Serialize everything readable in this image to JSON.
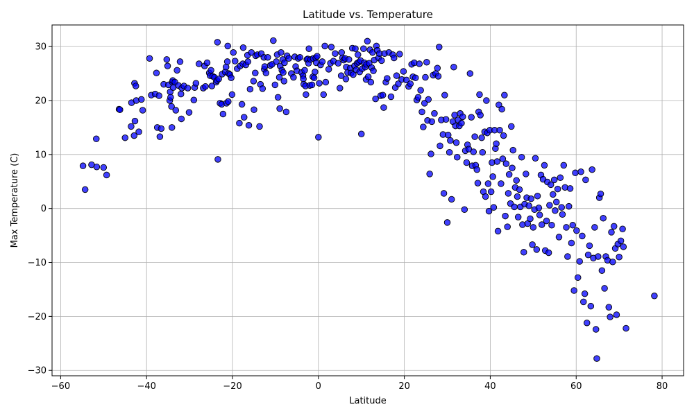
{
  "chart_data": {
    "type": "scatter",
    "title": "Latitude vs. Temperature",
    "xlabel": "Latitude",
    "ylabel": "Max Temperature (C)",
    "xlim": [
      -62,
      85
    ],
    "ylim": [
      -31,
      34
    ],
    "xticks": [
      -60,
      -40,
      -20,
      0,
      20,
      40,
      60,
      80
    ],
    "yticks": [
      -30,
      -20,
      -10,
      0,
      10,
      20,
      30
    ],
    "grid": true,
    "marker_color": "#0000ff",
    "marker_edge_color": "#000000",
    "points": [
      [
        -54.8,
        7.9
      ],
      [
        -54.3,
        3.5
      ],
      [
        -52.8,
        8.1
      ],
      [
        -51.7,
        12.9
      ],
      [
        -51.6,
        7.7
      ],
      [
        -50.0,
        7.6
      ],
      [
        -49.3,
        6.2
      ],
      [
        -46.4,
        18.4
      ],
      [
        -46.2,
        18.3
      ],
      [
        -45.0,
        13.1
      ],
      [
        -43.6,
        15.2
      ],
      [
        -43.5,
        19.6
      ],
      [
        -42.9,
        13.5
      ],
      [
        -42.8,
        23.2
      ],
      [
        -42.7,
        16.2
      ],
      [
        -42.5,
        22.7
      ],
      [
        -42.4,
        20.0
      ],
      [
        -41.8,
        14.2
      ],
      [
        -41.2,
        20.2
      ],
      [
        -40.9,
        18.2
      ],
      [
        -39.3,
        27.8
      ],
      [
        -38.9,
        21.0
      ],
      [
        -38.0,
        21.2
      ],
      [
        -37.7,
        25.1
      ],
      [
        -37.5,
        15.0
      ],
      [
        -37.1,
        20.9
      ],
      [
        -36.9,
        13.3
      ],
      [
        -36.6,
        14.8
      ],
      [
        -36.0,
        23.0
      ],
      [
        -35.3,
        27.6
      ],
      [
        -35.1,
        26.4
      ],
      [
        -34.9,
        22.9
      ],
      [
        -34.6,
        20.0
      ],
      [
        -34.5,
        21.6
      ],
      [
        -34.4,
        20.6
      ],
      [
        -34.2,
        18.9
      ],
      [
        -34.0,
        23.4
      ],
      [
        -34.1,
        15.0
      ],
      [
        -33.9,
        23.7
      ],
      [
        -33.8,
        22.4
      ],
      [
        -33.4,
        23.4
      ],
      [
        -33.2,
        18.2
      ],
      [
        -32.9,
        25.6
      ],
      [
        -32.6,
        22.8
      ],
      [
        -32.2,
        27.2
      ],
      [
        -32.0,
        21.2
      ],
      [
        -31.9,
        16.6
      ],
      [
        -31.8,
        22.3
      ],
      [
        -31.3,
        22.7
      ],
      [
        -30.4,
        22.3
      ],
      [
        -30.1,
        17.8
      ],
      [
        -29.0,
        20.1
      ],
      [
        -28.8,
        22.4
      ],
      [
        -28.5,
        23.2
      ],
      [
        -27.8,
        26.8
      ],
      [
        -26.8,
        22.3
      ],
      [
        -26.5,
        26.4
      ],
      [
        -26.3,
        22.6
      ],
      [
        -25.9,
        27.0
      ],
      [
        -25.4,
        25.1
      ],
      [
        -25.2,
        24.6
      ],
      [
        -25.0,
        25.6
      ],
      [
        -24.8,
        22.7
      ],
      [
        -24.6,
        24.5
      ],
      [
        -24.2,
        24.3
      ],
      [
        -23.8,
        23.4
      ],
      [
        -23.6,
        23.7
      ],
      [
        -23.5,
        30.8
      ],
      [
        -23.4,
        9.1
      ],
      [
        -23.2,
        24.0
      ],
      [
        -22.9,
        19.5
      ],
      [
        -22.5,
        19.3
      ],
      [
        -22.4,
        24.9
      ],
      [
        -22.2,
        17.5
      ],
      [
        -21.7,
        25.3
      ],
      [
        -21.5,
        26.2
      ],
      [
        -21.4,
        19.5
      ],
      [
        -21.1,
        30.1
      ],
      [
        -21.0,
        19.8
      ],
      [
        -20.9,
        25.0
      ],
      [
        -21.2,
        27.2
      ],
      [
        -20.6,
        24.8
      ],
      [
        -20.3,
        24.2
      ],
      [
        -20.1,
        21.1
      ],
      [
        -19.8,
        28.9
      ],
      [
        -19.4,
        27.3
      ],
      [
        -18.9,
        25.9
      ],
      [
        -18.4,
        15.8
      ],
      [
        -18.2,
        26.4
      ],
      [
        -17.8,
        19.3
      ],
      [
        -17.6,
        26.8
      ],
      [
        -17.5,
        29.8
      ],
      [
        -17.3,
        16.9
      ],
      [
        -16.9,
        26.6
      ],
      [
        -16.5,
        28.4
      ],
      [
        -16.4,
        27.2
      ],
      [
        -16.2,
        15.4
      ],
      [
        -15.9,
        22.1
      ],
      [
        -15.6,
        28.9
      ],
      [
        -15.1,
        23.6
      ],
      [
        -15.0,
        18.3
      ],
      [
        -14.7,
        25.1
      ],
      [
        -14.6,
        28.3
      ],
      [
        -14.2,
        28.5
      ],
      [
        -13.7,
        15.2
      ],
      [
        -13.5,
        23.0
      ],
      [
        -13.3,
        28.7
      ],
      [
        -13.0,
        22.2
      ],
      [
        -12.7,
        28.0
      ],
      [
        -12.6,
        25.8
      ],
      [
        -12.5,
        26.3
      ],
      [
        -12.2,
        25.1
      ],
      [
        -11.8,
        28.0
      ],
      [
        -11.2,
        26.5
      ],
      [
        -10.8,
        26.7
      ],
      [
        -10.5,
        31.1
      ],
      [
        -10.1,
        22.9
      ],
      [
        -9.8,
        27.2
      ],
      [
        -9.6,
        28.5
      ],
      [
        -9.4,
        20.6
      ],
      [
        -9.1,
        24.3
      ],
      [
        -9.0,
        18.5
      ],
      [
        -8.9,
        26.4
      ],
      [
        -8.7,
        28.9
      ],
      [
        -8.5,
        25.6
      ],
      [
        -8.3,
        27.6
      ],
      [
        -8.2,
        25.2
      ],
      [
        -8.0,
        23.6
      ],
      [
        -7.9,
        27.0
      ],
      [
        -7.5,
        17.9
      ],
      [
        -7.3,
        28.3
      ],
      [
        -6.9,
        27.8
      ],
      [
        -6.3,
        25.0
      ],
      [
        -5.8,
        24.3
      ],
      [
        -5.5,
        28.1
      ],
      [
        -5.3,
        26.3
      ],
      [
        -5.0,
        25.5
      ],
      [
        -4.7,
        27.8
      ],
      [
        -4.3,
        28.0
      ],
      [
        -3.9,
        25.2
      ],
      [
        -3.6,
        24.6
      ],
      [
        -3.5,
        24.0
      ],
      [
        -3.4,
        23.0
      ],
      [
        -3.2,
        25.6
      ],
      [
        -3.0,
        22.7
      ],
      [
        -2.9,
        21.1
      ],
      [
        -2.7,
        27.6
      ],
      [
        -2.5,
        27.7
      ],
      [
        -2.3,
        26.9
      ],
      [
        -2.2,
        29.6
      ],
      [
        -2.0,
        22.8
      ],
      [
        -1.8,
        27.6
      ],
      [
        -1.5,
        22.9
      ],
      [
        -1.3,
        24.4
      ],
      [
        -1.2,
        27.8
      ],
      [
        -1.0,
        24.2
      ],
      [
        -0.8,
        25.3
      ],
      [
        -0.6,
        27.9
      ],
      [
        -0.5,
        27.0
      ],
      [
        -0.3,
        28.2
      ],
      [
        0.0,
        13.2
      ],
      [
        0.2,
        23.2
      ],
      [
        0.5,
        26.6
      ],
      [
        0.9,
        27.2
      ],
      [
        1.2,
        21.1
      ],
      [
        1.5,
        30.1
      ],
      [
        1.7,
        23.4
      ],
      [
        2.4,
        25.8
      ],
      [
        2.8,
        26.9
      ],
      [
        3.0,
        29.9
      ],
      [
        3.5,
        27.3
      ],
      [
        3.9,
        28.7
      ],
      [
        4.6,
        26.9
      ],
      [
        5.0,
        22.3
      ],
      [
        5.3,
        24.6
      ],
      [
        5.4,
        28.9
      ],
      [
        5.6,
        27.9
      ],
      [
        5.9,
        27.5
      ],
      [
        6.2,
        27.8
      ],
      [
        6.4,
        24.0
      ],
      [
        6.5,
        26.2
      ],
      [
        6.8,
        25.2
      ],
      [
        7.1,
        27.6
      ],
      [
        7.4,
        26.0
      ],
      [
        7.6,
        25.1
      ],
      [
        7.9,
        29.7
      ],
      [
        8.1,
        24.8
      ],
      [
        8.4,
        26.4
      ],
      [
        8.6,
        29.6
      ],
      [
        8.8,
        25.7
      ],
      [
        9.0,
        26.9
      ],
      [
        9.2,
        28.5
      ],
      [
        9.4,
        27.1
      ],
      [
        9.6,
        25.3
      ],
      [
        9.8,
        27.4
      ],
      [
        10.0,
        13.8
      ],
      [
        10.2,
        25.9
      ],
      [
        10.5,
        29.6
      ],
      [
        10.7,
        27.0
      ],
      [
        10.9,
        26.2
      ],
      [
        11.1,
        23.9
      ],
      [
        11.2,
        26.7
      ],
      [
        11.4,
        31.0
      ],
      [
        11.6,
        24.4
      ],
      [
        11.8,
        26.9
      ],
      [
        12.0,
        29.4
      ],
      [
        12.2,
        23.4
      ],
      [
        12.4,
        26.1
      ],
      [
        12.6,
        28.9
      ],
      [
        12.8,
        25.5
      ],
      [
        13.0,
        27.5
      ],
      [
        13.3,
        20.3
      ],
      [
        13.5,
        30.1
      ],
      [
        13.7,
        29.3
      ],
      [
        14.0,
        27.9
      ],
      [
        14.2,
        28.7
      ],
      [
        14.5,
        20.9
      ],
      [
        14.7,
        27.4
      ],
      [
        15.0,
        21.0
      ],
      [
        15.2,
        18.7
      ],
      [
        15.4,
        28.7
      ],
      [
        15.7,
        23.4
      ],
      [
        16.0,
        24.1
      ],
      [
        16.4,
        28.9
      ],
      [
        16.9,
        20.7
      ],
      [
        17.3,
        28.5
      ],
      [
        17.6,
        27.9
      ],
      [
        17.9,
        22.4
      ],
      [
        18.2,
        24.6
      ],
      [
        18.6,
        23.1
      ],
      [
        18.9,
        28.6
      ],
      [
        19.4,
        23.9
      ],
      [
        19.8,
        25.4
      ],
      [
        20.5,
        23.8
      ],
      [
        21.0,
        22.6
      ],
      [
        21.4,
        23.1
      ],
      [
        21.7,
        26.7
      ],
      [
        22.0,
        24.4
      ],
      [
        22.3,
        27.0
      ],
      [
        22.6,
        24.2
      ],
      [
        22.9,
        20.1
      ],
      [
        23.2,
        20.6
      ],
      [
        23.5,
        26.8
      ],
      [
        23.8,
        21.9
      ],
      [
        24.1,
        17.9
      ],
      [
        24.4,
        15.1
      ],
      [
        24.7,
        19.5
      ],
      [
        24.9,
        24.3
      ],
      [
        25.2,
        27.1
      ],
      [
        25.4,
        16.3
      ],
      [
        25.6,
        20.2
      ],
      [
        25.9,
        6.4
      ],
      [
        26.2,
        10.1
      ],
      [
        26.4,
        16.1
      ],
      [
        26.7,
        24.7
      ],
      [
        27.0,
        17.6
      ],
      [
        27.3,
        25.0
      ],
      [
        27.7,
        26.0
      ],
      [
        27.9,
        24.5
      ],
      [
        28.1,
        29.9
      ],
      [
        28.3,
        11.6
      ],
      [
        28.6,
        16.4
      ],
      [
        29.0,
        13.7
      ],
      [
        29.2,
        2.8
      ],
      [
        29.4,
        21.0
      ],
      [
        29.7,
        16.5
      ],
      [
        30.0,
        -2.6
      ],
      [
        30.2,
        13.6
      ],
      [
        30.5,
        10.4
      ],
      [
        30.7,
        12.6
      ],
      [
        31.0,
        1.7
      ],
      [
        31.3,
        16.1
      ],
      [
        31.5,
        26.2
      ],
      [
        31.7,
        17.3
      ],
      [
        31.9,
        15.3
      ],
      [
        32.1,
        12.2
      ],
      [
        32.3,
        9.5
      ],
      [
        32.5,
        16.4
      ],
      [
        32.8,
        15.3
      ],
      [
        33.0,
        17.6
      ],
      [
        33.3,
        15.8
      ],
      [
        33.6,
        17.0
      ],
      [
        34.0,
        -0.2
      ],
      [
        34.2,
        10.7
      ],
      [
        34.5,
        8.5
      ],
      [
        34.7,
        11.8
      ],
      [
        35.0,
        11.0
      ],
      [
        35.3,
        25.0
      ],
      [
        35.6,
        16.9
      ],
      [
        35.8,
        7.9
      ],
      [
        36.1,
        10.5
      ],
      [
        36.4,
        13.3
      ],
      [
        36.6,
        8.0
      ],
      [
        36.9,
        7.2
      ],
      [
        37.1,
        4.7
      ],
      [
        37.3,
        17.9
      ],
      [
        37.5,
        21.1
      ],
      [
        37.7,
        17.3
      ],
      [
        38.0,
        13.1
      ],
      [
        38.2,
        10.4
      ],
      [
        38.4,
        3.1
      ],
      [
        38.7,
        14.2
      ],
      [
        38.9,
        2.2
      ],
      [
        39.1,
        20.0
      ],
      [
        39.3,
        14.0
      ],
      [
        39.5,
        4.6
      ],
      [
        39.7,
        -0.5
      ],
      [
        39.9,
        14.5
      ],
      [
        40.2,
        3.1
      ],
      [
        40.4,
        8.5
      ],
      [
        40.6,
        5.9
      ],
      [
        40.8,
        0.2
      ],
      [
        41.0,
        14.5
      ],
      [
        41.2,
        11.1
      ],
      [
        41.4,
        12.0
      ],
      [
        41.6,
        8.7
      ],
      [
        41.8,
        -4.2
      ],
      [
        42.0,
        19.2
      ],
      [
        42.2,
        14.5
      ],
      [
        42.5,
        4.6
      ],
      [
        42.7,
        18.4
      ],
      [
        42.9,
        9.2
      ],
      [
        43.1,
        13.5
      ],
      [
        43.3,
        21.0
      ],
      [
        43.5,
        -1.4
      ],
      [
        43.7,
        8.3
      ],
      [
        44.0,
        -3.4
      ],
      [
        44.2,
        2.8
      ],
      [
        44.4,
        6.3
      ],
      [
        44.7,
        0.9
      ],
      [
        44.9,
        15.2
      ],
      [
        45.1,
        7.5
      ],
      [
        45.3,
        10.8
      ],
      [
        45.6,
        0.3
      ],
      [
        45.8,
        3.9
      ],
      [
        46.1,
        5.2
      ],
      [
        46.3,
        2.2
      ],
      [
        46.5,
        -1.6
      ],
      [
        46.8,
        3.5
      ],
      [
        47.0,
        0.3
      ],
      [
        47.3,
        9.5
      ],
      [
        47.5,
        -3.0
      ],
      [
        47.8,
        -8.1
      ],
      [
        48.0,
        0.8
      ],
      [
        48.3,
        6.4
      ],
      [
        48.5,
        2.0
      ],
      [
        48.7,
        -2.8
      ],
      [
        49.0,
        0.5
      ],
      [
        49.3,
        -1.9
      ],
      [
        49.5,
        1.8
      ],
      [
        49.8,
        -6.7
      ],
      [
        50.0,
        -3.5
      ],
      [
        50.3,
        -0.2
      ],
      [
        50.5,
        9.3
      ],
      [
        50.8,
        -7.6
      ],
      [
        51.0,
        2.3
      ],
      [
        51.3,
        0.1
      ],
      [
        51.5,
        -1.2
      ],
      [
        51.8,
        6.2
      ],
      [
        52.0,
        -3.0
      ],
      [
        52.3,
        5.4
      ],
      [
        52.6,
        8.0
      ],
      [
        52.8,
        -7.8
      ],
      [
        53.1,
        -2.3
      ],
      [
        53.3,
        4.9
      ],
      [
        53.6,
        -8.2
      ],
      [
        53.8,
        0.6
      ],
      [
        54.1,
        4.4
      ],
      [
        54.3,
        -3.1
      ],
      [
        54.6,
        2.6
      ],
      [
        54.9,
        5.3
      ],
      [
        55.1,
        -0.4
      ],
      [
        55.4,
        1.2
      ],
      [
        55.7,
        3.6
      ],
      [
        56.0,
        -5.3
      ],
      [
        56.3,
        5.7
      ],
      [
        56.6,
        0.2
      ],
      [
        56.8,
        -1.1
      ],
      [
        57.1,
        8.0
      ],
      [
        57.4,
        3.9
      ],
      [
        57.7,
        -3.5
      ],
      [
        58.0,
        -8.9
      ],
      [
        58.3,
        0.4
      ],
      [
        58.6,
        3.7
      ],
      [
        58.9,
        -6.4
      ],
      [
        59.2,
        -3.1
      ],
      [
        59.5,
        -15.2
      ],
      [
        59.8,
        6.6
      ],
      [
        60.1,
        -4.1
      ],
      [
        60.4,
        -12.8
      ],
      [
        60.8,
        -9.8
      ],
      [
        61.1,
        6.8
      ],
      [
        61.4,
        -5.1
      ],
      [
        61.7,
        -17.3
      ],
      [
        62.0,
        -15.8
      ],
      [
        62.2,
        5.3
      ],
      [
        62.5,
        -21.2
      ],
      [
        62.8,
        -8.6
      ],
      [
        63.1,
        -6.9
      ],
      [
        63.4,
        -18.1
      ],
      [
        63.7,
        7.2
      ],
      [
        64.0,
        -9.2
      ],
      [
        64.3,
        -3.5
      ],
      [
        64.6,
        -22.4
      ],
      [
        64.8,
        -27.8
      ],
      [
        65.1,
        -8.9
      ],
      [
        65.4,
        2.0
      ],
      [
        65.7,
        2.7
      ],
      [
        66.0,
        -11.5
      ],
      [
        66.3,
        -1.8
      ],
      [
        66.6,
        -14.8
      ],
      [
        66.9,
        -8.9
      ],
      [
        67.3,
        -9.6
      ],
      [
        67.6,
        -18.3
      ],
      [
        67.9,
        -20.1
      ],
      [
        68.2,
        -4.4
      ],
      [
        68.5,
        -9.9
      ],
      [
        68.8,
        -3.3
      ],
      [
        69.1,
        -7.4
      ],
      [
        69.4,
        -19.7
      ],
      [
        69.7,
        -6.6
      ],
      [
        70.0,
        -9.0
      ],
      [
        70.4,
        -6.0
      ],
      [
        70.8,
        -3.8
      ],
      [
        71.0,
        -7.1
      ],
      [
        71.6,
        -22.2
      ],
      [
        78.2,
        -16.2
      ]
    ]
  }
}
